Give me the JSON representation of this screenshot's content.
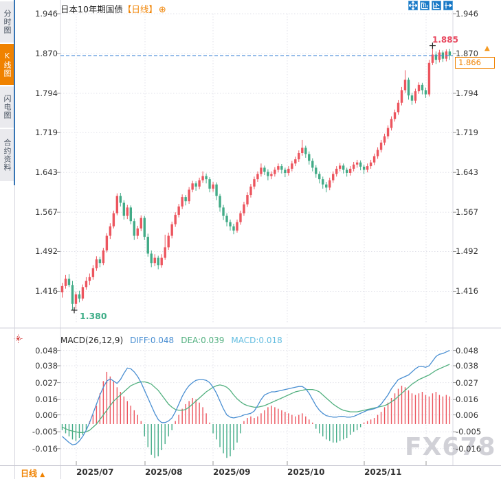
{
  "sidebar": {
    "tabs": [
      {
        "label": "分时图",
        "active": false
      },
      {
        "label": "K线图",
        "active": true
      },
      {
        "label": "闪电图",
        "active": false
      },
      {
        "label": "合约资料",
        "active": false
      }
    ]
  },
  "header": {
    "title": "日本10年期国债",
    "timeframe_tag": "【日线】",
    "add_icon": "⊕",
    "toolbar_icons": [
      "pan-icon",
      "fit-width-icon",
      "fit-height-icon",
      "jump-latest-icon"
    ]
  },
  "bottom_bar": {
    "period_label": "日线",
    "period_arrow": "▲"
  },
  "watermark": "FX678",
  "colors": {
    "up_candle": "#ec555e",
    "down_candle": "#42ab87",
    "diff_line": "#4a8fd2",
    "dea_line": "#52b07f",
    "macd_text": "#63bde0",
    "accent_orange": "#f08200",
    "price_dashed_line": "#3f86d6",
    "grid": "#e2e2ea",
    "axis_text": "#333333",
    "high_annotation": "#e8485f",
    "low_annotation": "#3fae88",
    "toolbar_blue": "#1878c6",
    "watermark_gray": "#c9cad1"
  },
  "chart_data": {
    "type": "candlestick",
    "title": "日本10年期国债",
    "period": "日线",
    "price_axis_labels": [
      "1.946",
      "1.870",
      "1.794",
      "1.719",
      "1.643",
      "1.567",
      "1.492",
      "1.416"
    ],
    "price_axis_values": [
      1.946,
      1.87,
      1.794,
      1.719,
      1.643,
      1.567,
      1.492,
      1.416
    ],
    "x_axis_labels": [
      "2025/07",
      "2025/08",
      "2025/09",
      "2025/10",
      "2025/11"
    ],
    "high_label": "1.885",
    "low_label": "1.380",
    "current_price": "1.866",
    "current_price_value": 1.866,
    "price_arrow": "▲",
    "candles": [
      [
        1.414,
        1.432,
        1.404,
        1.426
      ],
      [
        1.426,
        1.447,
        1.421,
        1.44
      ],
      [
        1.44,
        1.449,
        1.424,
        1.428
      ],
      [
        1.428,
        1.436,
        1.38,
        1.392
      ],
      [
        1.392,
        1.415,
        1.383,
        1.41
      ],
      [
        1.41,
        1.417,
        1.395,
        1.402
      ],
      [
        1.402,
        1.429,
        1.398,
        1.424
      ],
      [
        1.424,
        1.443,
        1.419,
        1.436
      ],
      [
        1.436,
        1.45,
        1.428,
        1.443
      ],
      [
        1.443,
        1.466,
        1.438,
        1.46
      ],
      [
        1.46,
        1.483,
        1.455,
        1.477
      ],
      [
        1.477,
        1.482,
        1.462,
        1.47
      ],
      [
        1.47,
        1.499,
        1.466,
        1.494
      ],
      [
        1.494,
        1.527,
        1.49,
        1.522
      ],
      [
        1.522,
        1.546,
        1.516,
        1.54
      ],
      [
        1.54,
        1.57,
        1.536,
        1.565
      ],
      [
        1.565,
        1.603,
        1.561,
        1.598
      ],
      [
        1.598,
        1.604,
        1.578,
        1.585
      ],
      [
        1.585,
        1.59,
        1.553,
        1.56
      ],
      [
        1.56,
        1.581,
        1.554,
        1.576
      ],
      [
        1.576,
        1.58,
        1.544,
        1.55
      ],
      [
        1.55,
        1.555,
        1.514,
        1.522
      ],
      [
        1.522,
        1.541,
        1.516,
        1.536
      ],
      [
        1.536,
        1.561,
        1.531,
        1.556
      ],
      [
        1.556,
        1.56,
        1.514,
        1.52
      ],
      [
        1.52,
        1.526,
        1.482,
        1.488
      ],
      [
        1.488,
        1.494,
        1.462,
        1.47
      ],
      [
        1.47,
        1.487,
        1.464,
        1.48
      ],
      [
        1.48,
        1.484,
        1.458,
        1.466
      ],
      [
        1.466,
        1.487,
        1.461,
        1.48
      ],
      [
        1.48,
        1.524,
        1.476,
        1.5
      ],
      [
        1.5,
        1.528,
        1.495,
        1.522
      ],
      [
        1.522,
        1.549,
        1.517,
        1.544
      ],
      [
        1.544,
        1.567,
        1.539,
        1.562
      ],
      [
        1.562,
        1.583,
        1.557,
        1.578
      ],
      [
        1.578,
        1.601,
        1.573,
        1.596
      ],
      [
        1.596,
        1.6,
        1.58,
        1.588
      ],
      [
        1.588,
        1.615,
        1.583,
        1.61
      ],
      [
        1.61,
        1.627,
        1.605,
        1.622
      ],
      [
        1.622,
        1.626,
        1.608,
        1.616
      ],
      [
        1.616,
        1.633,
        1.611,
        1.628
      ],
      [
        1.628,
        1.645,
        1.623,
        1.636
      ],
      [
        1.636,
        1.641,
        1.622,
        1.63
      ],
      [
        1.63,
        1.634,
        1.605,
        1.612
      ],
      [
        1.612,
        1.625,
        1.606,
        1.62
      ],
      [
        1.62,
        1.624,
        1.59,
        1.598
      ],
      [
        1.598,
        1.602,
        1.568,
        1.576
      ],
      [
        1.576,
        1.581,
        1.552,
        1.56
      ],
      [
        1.56,
        1.565,
        1.54,
        1.548
      ],
      [
        1.548,
        1.553,
        1.532,
        1.54
      ],
      [
        1.54,
        1.545,
        1.525,
        1.532
      ],
      [
        1.532,
        1.553,
        1.528,
        1.548
      ],
      [
        1.548,
        1.57,
        1.543,
        1.565
      ],
      [
        1.565,
        1.587,
        1.56,
        1.582
      ],
      [
        1.582,
        1.605,
        1.577,
        1.6
      ],
      [
        1.6,
        1.621,
        1.595,
        1.616
      ],
      [
        1.616,
        1.635,
        1.611,
        1.63
      ],
      [
        1.63,
        1.645,
        1.625,
        1.64
      ],
      [
        1.64,
        1.66,
        1.635,
        1.652
      ],
      [
        1.652,
        1.656,
        1.638,
        1.644
      ],
      [
        1.644,
        1.649,
        1.628,
        1.636
      ],
      [
        1.636,
        1.645,
        1.63,
        1.64
      ],
      [
        1.64,
        1.653,
        1.635,
        1.648
      ],
      [
        1.648,
        1.66,
        1.643,
        1.655
      ],
      [
        1.655,
        1.659,
        1.641,
        1.648
      ],
      [
        1.648,
        1.652,
        1.634,
        1.642
      ],
      [
        1.642,
        1.655,
        1.637,
        1.65
      ],
      [
        1.65,
        1.665,
        1.645,
        1.66
      ],
      [
        1.66,
        1.673,
        1.655,
        1.668
      ],
      [
        1.668,
        1.685,
        1.663,
        1.68
      ],
      [
        1.68,
        1.705,
        1.675,
        1.69
      ],
      [
        1.69,
        1.694,
        1.671,
        1.678
      ],
      [
        1.678,
        1.683,
        1.658,
        1.665
      ],
      [
        1.665,
        1.67,
        1.645,
        1.652
      ],
      [
        1.652,
        1.657,
        1.633,
        1.64
      ],
      [
        1.64,
        1.645,
        1.622,
        1.63
      ],
      [
        1.63,
        1.635,
        1.612,
        1.62
      ],
      [
        1.62,
        1.625,
        1.605,
        1.614
      ],
      [
        1.614,
        1.633,
        1.609,
        1.628
      ],
      [
        1.628,
        1.645,
        1.623,
        1.64
      ],
      [
        1.64,
        1.655,
        1.635,
        1.65
      ],
      [
        1.65,
        1.661,
        1.645,
        1.656
      ],
      [
        1.656,
        1.66,
        1.641,
        1.648
      ],
      [
        1.648,
        1.652,
        1.635,
        1.642
      ],
      [
        1.642,
        1.655,
        1.637,
        1.65
      ],
      [
        1.65,
        1.663,
        1.645,
        1.658
      ],
      [
        1.658,
        1.667,
        1.652,
        1.662
      ],
      [
        1.662,
        1.666,
        1.647,
        1.654
      ],
      [
        1.654,
        1.658,
        1.64,
        1.648
      ],
      [
        1.648,
        1.66,
        1.643,
        1.655
      ],
      [
        1.655,
        1.667,
        1.65,
        1.662
      ],
      [
        1.662,
        1.679,
        1.657,
        1.674
      ],
      [
        1.674,
        1.691,
        1.669,
        1.686
      ],
      [
        1.686,
        1.705,
        1.681,
        1.7
      ],
      [
        1.7,
        1.717,
        1.695,
        1.712
      ],
      [
        1.712,
        1.733,
        1.707,
        1.728
      ],
      [
        1.728,
        1.75,
        1.723,
        1.745
      ],
      [
        1.745,
        1.763,
        1.74,
        1.758
      ],
      [
        1.758,
        1.781,
        1.753,
        1.776
      ],
      [
        1.776,
        1.806,
        1.771,
        1.8
      ],
      [
        1.8,
        1.838,
        1.795,
        1.82
      ],
      [
        1.82,
        1.824,
        1.782,
        1.79
      ],
      [
        1.79,
        1.795,
        1.772,
        1.78
      ],
      [
        1.78,
        1.803,
        1.775,
        1.798
      ],
      [
        1.798,
        1.815,
        1.793,
        1.81
      ],
      [
        1.81,
        1.814,
        1.792,
        1.8
      ],
      [
        1.8,
        1.805,
        1.785,
        1.792
      ],
      [
        1.792,
        1.858,
        1.788,
        1.852
      ],
      [
        1.852,
        1.885,
        1.848,
        1.868
      ],
      [
        1.868,
        1.874,
        1.85,
        1.858
      ],
      [
        1.858,
        1.877,
        1.853,
        1.872
      ],
      [
        1.872,
        1.876,
        1.854,
        1.86
      ],
      [
        1.86,
        1.878,
        1.855,
        1.874
      ],
      [
        1.874,
        1.879,
        1.858,
        1.866
      ]
    ],
    "macd": {
      "params_label": "MACD(26,12,9)",
      "diff_label": "DIFF:0.048",
      "dea_label": "DEA:0.039",
      "macd_label": "MACD:0.018",
      "axis_labels": [
        "0.048",
        "0.038",
        "0.027",
        "0.016",
        "0.006",
        "-0.005",
        "-0.016"
      ],
      "axis_values": [
        0.048,
        0.038,
        0.027,
        0.016,
        0.006,
        -0.005,
        -0.016
      ],
      "diff": [
        -0.008,
        -0.01,
        -0.012,
        -0.0135,
        -0.013,
        -0.011,
        -0.008,
        -0.004,
        0.001,
        0.007,
        0.013,
        0.019,
        0.024,
        0.028,
        0.0295,
        0.028,
        0.0265,
        0.029,
        0.033,
        0.0365,
        0.036,
        0.034,
        0.031,
        0.027,
        0.022,
        0.017,
        0.012,
        0.007,
        0.003,
        0.001,
        0.001,
        0.002,
        0.004,
        0.008,
        0.013,
        0.018,
        0.022,
        0.025,
        0.027,
        0.0285,
        0.029,
        0.029,
        0.0285,
        0.027,
        0.024,
        0.02,
        0.015,
        0.01,
        0.006,
        0.0045,
        0.004,
        0.0045,
        0.005,
        0.006,
        0.0065,
        0.007,
        0.0085,
        0.012,
        0.016,
        0.019,
        0.02,
        0.021,
        0.021,
        0.0215,
        0.022,
        0.0225,
        0.023,
        0.0235,
        0.024,
        0.0245,
        0.0245,
        0.023,
        0.02,
        0.016,
        0.012,
        0.009,
        0.007,
        0.0055,
        0.005,
        0.0045,
        0.0045,
        0.005,
        0.005,
        0.0045,
        0.0045,
        0.005,
        0.006,
        0.007,
        0.008,
        0.009,
        0.0095,
        0.01,
        0.011,
        0.013,
        0.016,
        0.019,
        0.023,
        0.026,
        0.029,
        0.03,
        0.031,
        0.032,
        0.034,
        0.036,
        0.0375,
        0.0375,
        0.037,
        0.038,
        0.041,
        0.044,
        0.0455,
        0.046,
        0.047,
        0.048
      ],
      "dea": [
        -0.002,
        -0.003,
        -0.004,
        -0.0045,
        -0.005,
        -0.0055,
        -0.0055,
        -0.005,
        -0.004,
        -0.002,
        0.0,
        0.003,
        0.006,
        0.009,
        0.012,
        0.015,
        0.017,
        0.019,
        0.021,
        0.023,
        0.025,
        0.026,
        0.027,
        0.0275,
        0.0275,
        0.027,
        0.026,
        0.024,
        0.022,
        0.019,
        0.016,
        0.013,
        0.011,
        0.0095,
        0.009,
        0.009,
        0.0095,
        0.011,
        0.013,
        0.015,
        0.017,
        0.019,
        0.021,
        0.0225,
        0.024,
        0.025,
        0.0255,
        0.025,
        0.024,
        0.022,
        0.019,
        0.0165,
        0.0145,
        0.013,
        0.012,
        0.0115,
        0.011,
        0.011,
        0.0115,
        0.012,
        0.013,
        0.014,
        0.015,
        0.016,
        0.017,
        0.018,
        0.019,
        0.02,
        0.021,
        0.0215,
        0.022,
        0.0225,
        0.0225,
        0.0225,
        0.022,
        0.021,
        0.019,
        0.017,
        0.015,
        0.013,
        0.0115,
        0.01,
        0.009,
        0.0085,
        0.008,
        0.008,
        0.008,
        0.0085,
        0.009,
        0.0095,
        0.01,
        0.0105,
        0.011,
        0.0115,
        0.012,
        0.013,
        0.0145,
        0.016,
        0.018,
        0.02,
        0.022,
        0.024,
        0.026,
        0.0275,
        0.029,
        0.03,
        0.031,
        0.032,
        0.0335,
        0.035,
        0.036,
        0.037,
        0.038,
        0.039
      ],
      "hist": [
        -0.004,
        -0.006,
        -0.008,
        -0.01,
        -0.011,
        -0.009,
        -0.007,
        -0.004,
        0.002,
        0.006,
        0.012,
        0.02,
        0.028,
        0.034,
        0.031,
        0.028,
        0.024,
        0.021,
        0.018,
        0.015,
        0.012,
        0.009,
        0.006,
        0.002,
        -0.008,
        -0.015,
        -0.02,
        -0.022,
        -0.021,
        -0.017,
        -0.013,
        -0.008,
        -0.004,
        0.002,
        0.006,
        0.01,
        0.013,
        0.015,
        0.017,
        0.016,
        0.014,
        0.011,
        0.007,
        0.001,
        -0.006,
        -0.01,
        -0.015,
        -0.019,
        -0.022,
        -0.021,
        -0.017,
        -0.012,
        -0.006,
        0.002,
        0.004,
        0.005,
        0.004,
        0.005,
        0.007,
        0.009,
        0.011,
        0.012,
        0.011,
        0.01,
        0.009,
        0.008,
        0.007,
        0.006,
        0.005,
        0.006,
        0.007,
        0.005,
        0.003,
        0.001,
        -0.003,
        -0.006,
        -0.008,
        -0.01,
        -0.011,
        -0.012,
        -0.012,
        -0.011,
        -0.01,
        -0.009,
        -0.007,
        -0.005,
        -0.004,
        -0.002,
        0.001,
        0.002,
        0.003,
        0.004,
        0.006,
        0.008,
        0.011,
        0.014,
        0.017,
        0.02,
        0.023,
        0.025,
        0.024,
        0.022,
        0.02,
        0.019,
        0.02,
        0.021,
        0.019,
        0.018,
        0.02,
        0.021,
        0.019,
        0.018,
        0.019,
        0.018
      ]
    }
  }
}
